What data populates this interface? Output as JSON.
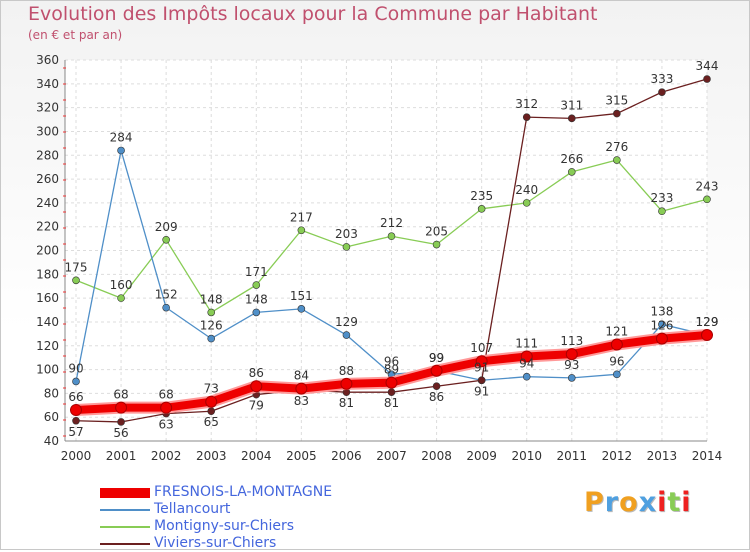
{
  "chart_data": {
    "type": "line",
    "title": "Evolution des Impôts locaux pour la Commune par Habitant",
    "subtitle": "(en € et par an)",
    "x": [
      "2000",
      "2001",
      "2002",
      "2003",
      "2004",
      "2005",
      "2006",
      "2007",
      "2008",
      "2009",
      "2010",
      "2011",
      "2012",
      "2013",
      "2014"
    ],
    "ylim": [
      40,
      360
    ],
    "yticks": [
      40,
      60,
      80,
      100,
      120,
      140,
      160,
      180,
      200,
      220,
      240,
      260,
      280,
      300,
      320,
      340,
      360
    ],
    "grid": true,
    "legend_position": "bottom-left",
    "series": [
      {
        "name": "FRESNOIS-LA-MONTAGNE",
        "color": "#ee0000",
        "values": [
          66,
          68,
          68,
          73,
          86,
          84,
          88,
          89,
          99,
          107,
          111,
          113,
          121,
          126,
          129
        ],
        "labels": [
          "66",
          "68",
          "68",
          "73",
          "86",
          "84",
          "88",
          "89",
          "99",
          "107",
          "111",
          "113",
          "121",
          "126",
          "129"
        ]
      },
      {
        "name": "Tellancourt",
        "color": "#4f8fc8",
        "values": [
          90,
          284,
          152,
          126,
          148,
          151,
          129,
          96,
          99,
          91,
          94,
          93,
          96,
          138,
          129
        ],
        "labels": [
          "90",
          "284",
          "152",
          "126",
          "148",
          "151",
          "129",
          "96",
          "99",
          "91",
          "94",
          "93",
          "96",
          "138",
          "129"
        ]
      },
      {
        "name": "Montigny-sur-Chiers",
        "color": "#88cc55",
        "values": [
          175,
          160,
          209,
          148,
          171,
          217,
          203,
          212,
          205,
          235,
          240,
          266,
          276,
          233,
          243
        ],
        "labels": [
          "175",
          "160",
          "209",
          "148",
          "171",
          "217",
          "203",
          "212",
          "205",
          "235",
          "240",
          "266",
          "276",
          "233",
          "243"
        ]
      },
      {
        "name": "Viviers-sur-Chiers",
        "color": "#6b2020",
        "values": [
          57,
          56,
          63,
          65,
          79,
          83,
          81,
          81,
          86,
          91,
          312,
          311,
          315,
          333,
          344
        ],
        "labels": [
          "57",
          "56",
          "63",
          "65",
          "79",
          "83",
          "81",
          "81",
          "86",
          "91",
          "312",
          "311",
          "315",
          "333",
          "344"
        ]
      }
    ]
  },
  "logo": {
    "text": "Proxiti",
    "letters": [
      "P",
      "r",
      "o",
      "x",
      "i",
      "t",
      "i"
    ],
    "colors": [
      "#f0a020",
      "#4fa0e0",
      "#f0a020",
      "#4fa0e0",
      "#ee2020",
      "#88cc55",
      "#ee2020"
    ]
  }
}
